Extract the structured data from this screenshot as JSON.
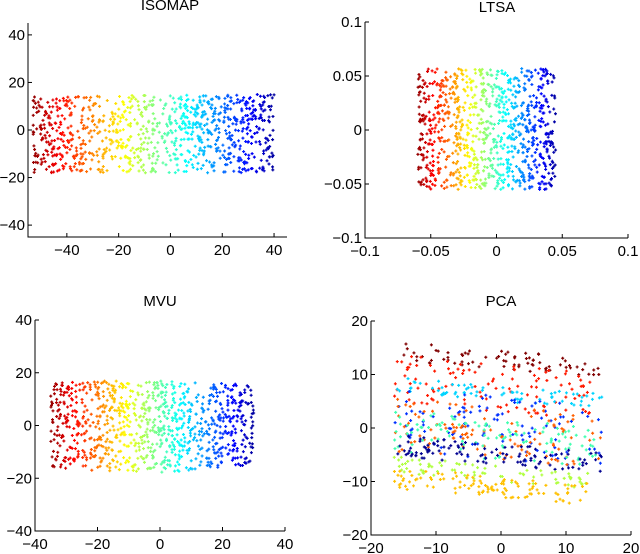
{
  "chart_data": [
    {
      "type": "scatter",
      "title": "ISOMAP",
      "xlim": [
        -55,
        45
      ],
      "ylim": [
        -45,
        45
      ],
      "xticks": [
        -40,
        -20,
        0,
        20,
        40
      ],
      "xtick_labels": [
        "−40",
        "−20",
        "0",
        "20",
        "40"
      ],
      "yticks": [
        -40,
        -20,
        0,
        20,
        40
      ],
      "ytick_labels": [
        "−40",
        "−20",
        "0",
        "20",
        "40"
      ],
      "colormap": "jet",
      "color_encoding": "x (dark red at left, dark blue at right)",
      "points_x_extent": [
        -53,
        40
      ],
      "points_y_extent": [
        -18,
        15
      ],
      "point_count_approx": 900,
      "grid": false
    },
    {
      "type": "scatter",
      "title": "LTSA",
      "xlim": [
        -0.1,
        0.1
      ],
      "ylim": [
        -0.1,
        0.1
      ],
      "xticks": [
        -0.1,
        -0.05,
        0,
        0.05,
        0.1
      ],
      "xtick_labels": [
        "−0.1",
        "−0.05",
        "0",
        "0.05",
        "0.1"
      ],
      "yticks": [
        -0.1,
        -0.05,
        0,
        0.05,
        0.1
      ],
      "ytick_labels": [
        "−0.1",
        "−0.05",
        "0",
        "0.05",
        "0.1"
      ],
      "colormap": "jet",
      "color_encoding": "x (dark red at left, dark blue at right)",
      "points_x_extent": [
        -0.06,
        0.045
      ],
      "points_y_extent": [
        -0.055,
        0.057
      ],
      "point_count_approx": 900,
      "grid": false
    },
    {
      "type": "scatter",
      "title": "MVU",
      "xlim": [
        -40,
        40
      ],
      "ylim": [
        -40,
        40
      ],
      "xticks": [
        -40,
        -20,
        0,
        20,
        40
      ],
      "xtick_labels": [
        "−40",
        "−20",
        "0",
        "20",
        "40"
      ],
      "yticks": [
        -40,
        -20,
        0,
        20,
        40
      ],
      "ytick_labels": [
        "−40",
        "−20",
        "0",
        "20",
        "40"
      ],
      "colormap": "jet",
      "color_encoding": "x (dark red at left, dark blue at right)",
      "points_x_extent": [
        -35,
        30
      ],
      "points_y_extent": [
        -18,
        18
      ],
      "point_count_approx": 900,
      "grid": false
    },
    {
      "type": "scatter",
      "title": "PCA",
      "xlim": [
        -20,
        20
      ],
      "ylim": [
        -20,
        20
      ],
      "xticks": [
        -20,
        -10,
        0,
        10,
        20
      ],
      "xtick_labels": [
        "−20",
        "−10",
        "0",
        "10",
        "20"
      ],
      "yticks": [
        -20,
        -10,
        0,
        10,
        20
      ],
      "ytick_labels": [
        "−20",
        "−10",
        "0",
        "10",
        "20"
      ],
      "colormap": "jet",
      "color_bands": [
        {
          "color": "#800000",
          "y_range": [
            11,
            14.5
          ]
        },
        {
          "color": "#ff1a00",
          "y_range": [
            3,
            12
          ]
        },
        {
          "color": "#00d4ff",
          "y_range": [
            5,
            8
          ]
        },
        {
          "color": "#0030ff",
          "y_range": [
            -6,
            6
          ]
        },
        {
          "color": "#ff6000",
          "y_range": [
            -6,
            4
          ]
        },
        {
          "color": "#40ffb0",
          "y_range": [
            -6,
            2
          ]
        },
        {
          "color": "#000090",
          "y_range": [
            -7,
            -3
          ]
        },
        {
          "color": "#b0ff40",
          "y_range": [
            -10,
            -7
          ]
        },
        {
          "color": "#ffc000",
          "y_range": [
            -13,
            -9
          ]
        }
      ],
      "points_x_extent": [
        -16.5,
        15.5
      ],
      "points_y_extent": [
        -13,
        14.5
      ],
      "point_count_approx": 900,
      "grid": false
    }
  ]
}
